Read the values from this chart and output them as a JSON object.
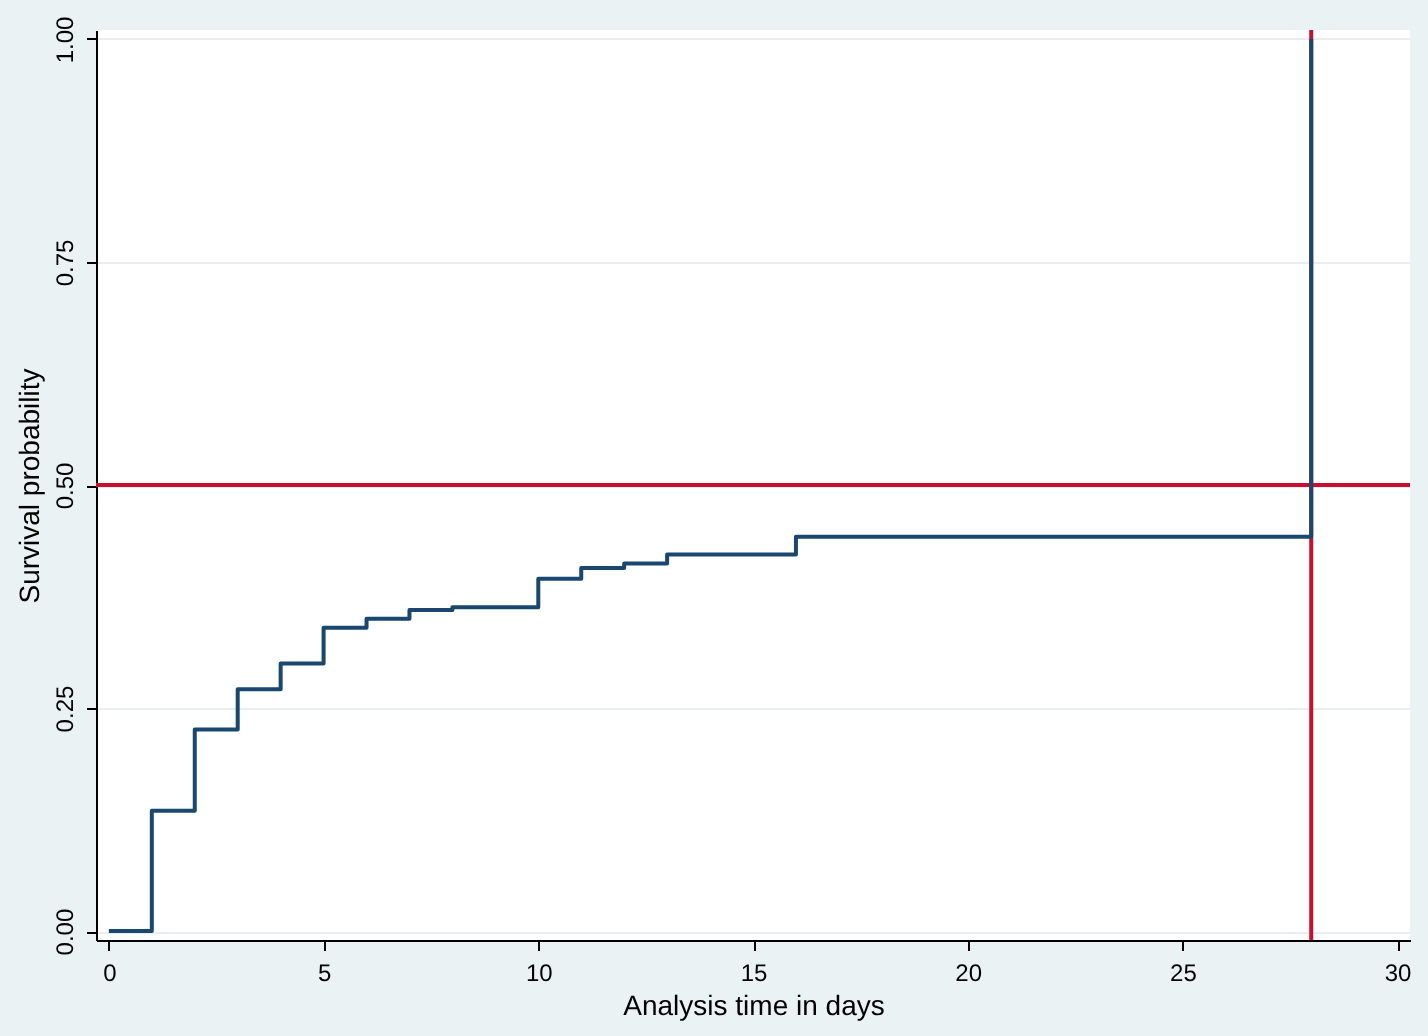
{
  "chart_data": {
    "type": "step",
    "xlabel": "Analysis time in days",
    "ylabel": "Survival probability",
    "x": [
      0,
      1,
      2,
      3,
      4,
      5,
      6,
      7,
      8,
      10,
      11,
      12,
      13,
      16,
      28
    ],
    "series": [
      {
        "color": "#1a476f",
        "values": [
          0,
          0.135,
          0.226,
          0.271,
          0.3,
          0.34,
          0.35,
          0.36,
          0.363,
          0.395,
          0.407,
          0.412,
          0.422,
          0.442,
          1.0
        ]
      }
    ],
    "xlim": [
      -0.3,
      30.3
    ],
    "xticks": [
      0,
      5,
      10,
      15,
      20,
      25,
      30
    ],
    "ylim": [
      -0.01,
      1.01
    ],
    "yticks": [
      {
        "value": 0,
        "label": "0.00"
      },
      {
        "value": 0.25,
        "label": "0.25"
      },
      {
        "value": 0.5,
        "label": "0.50"
      },
      {
        "value": 0.75,
        "label": "0.75"
      },
      {
        "value": 1,
        "label": "1.00"
      }
    ],
    "grid": "y",
    "ref_lines": [
      {
        "axis": "y",
        "value": 0.5,
        "color": "#c8102e"
      },
      {
        "axis": "x",
        "value": 28,
        "color": "#c8102e"
      }
    ]
  }
}
